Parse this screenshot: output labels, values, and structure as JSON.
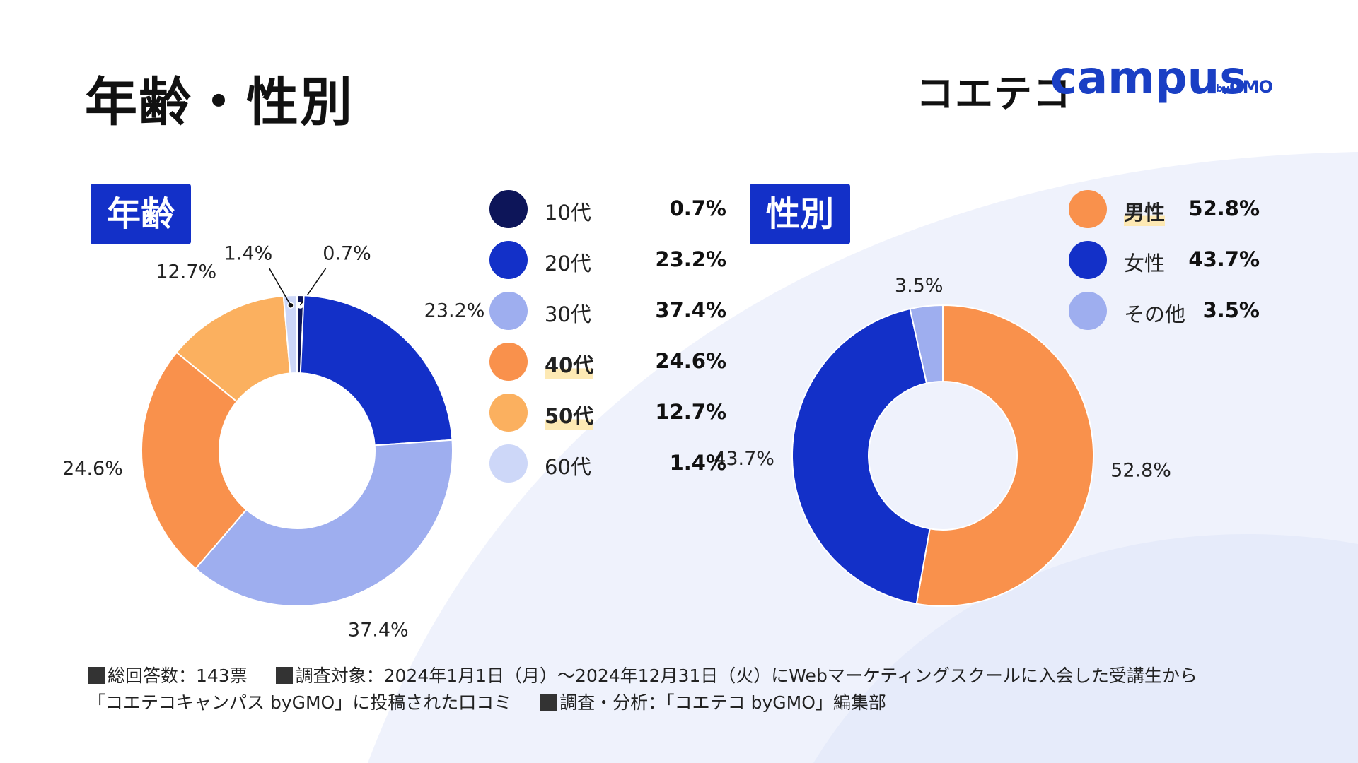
{
  "title": "年齢・性別",
  "logo": {
    "mark": "コエテコ",
    "campus": "campus",
    "by": "by",
    "gmo": "GMO"
  },
  "colors": {
    "navy": "#0d1559",
    "blue": "#1330c8",
    "periwinkle": "#9eaeef",
    "orange": "#f9914c",
    "light_orange": "#fbb05f",
    "pale_blue": "#cdd7f8",
    "background_shape": "#eff2fc",
    "highlight": "#fde9b4"
  },
  "age_section": {
    "badge": "年齢"
  },
  "gender_section": {
    "badge": "性別"
  },
  "chart_data": [
    {
      "type": "pie",
      "title": "年齢",
      "donut": true,
      "unit": "%",
      "labels": [
        "10代",
        "20代",
        "30代",
        "40代",
        "50代",
        "60代"
      ],
      "values": [
        0.7,
        23.2,
        37.4,
        24.6,
        12.7,
        1.4
      ],
      "value_labels": [
        "0.7%",
        "23.2%",
        "37.4%",
        "24.6%",
        "12.7%",
        "1.4%"
      ],
      "colors": [
        "#0d1559",
        "#1330c8",
        "#9eaeef",
        "#f9914c",
        "#fbb05f",
        "#cdd7f8"
      ],
      "highlighted": [
        false,
        false,
        false,
        true,
        true,
        false
      ],
      "legend_position": "right"
    },
    {
      "type": "pie",
      "title": "性別",
      "donut": true,
      "unit": "%",
      "labels": [
        "男性",
        "女性",
        "その他"
      ],
      "values": [
        52.8,
        43.7,
        3.5
      ],
      "value_labels": [
        "52.8%",
        "43.7%",
        "3.5%"
      ],
      "colors": [
        "#f9914c",
        "#1330c8",
        "#9eaeef"
      ],
      "highlighted": [
        true,
        false,
        false
      ],
      "legend_position": "top-right"
    }
  ],
  "footnote": {
    "total": "総回答数：143票",
    "target": "調査対象：2024年1月1日（月）～2024年12月31日（火）にWebマーケティングスクールに入会した受講生から",
    "target_cont": "「コエテコキャンパス byGMO」に投稿された口コミ",
    "analysis": "調査・分析：「コエテコ byGMO」編集部"
  }
}
